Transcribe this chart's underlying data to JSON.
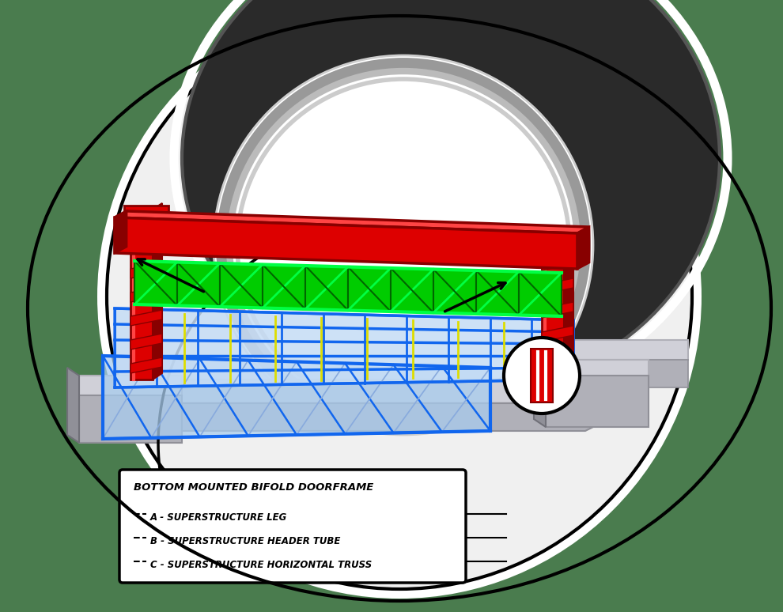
{
  "bg_color": "#4a7c4e",
  "legend_title": "BOTTOM MOUNTED BIFOLD DOORFRAME",
  "legend_items": [
    "A - SUPERSTRUCTURE LEG",
    "B - SUPERSTRUCTURE HEADER TUBE",
    "C - SUPERSTRUCTURE HORIZONTAL TRUSS"
  ],
  "red_color": "#dd0000",
  "red_light": "#ff4444",
  "red_dark": "#880000",
  "green_color": "#00dd00",
  "green_dark": "#006600",
  "blue_color": "#1166ee",
  "blue_light": "#aaccff",
  "yellow_color": "#dddd00",
  "white_color": "#ffffff",
  "dome_dark": "#1a1a1a",
  "dome_mid": "#3a3a3a",
  "dome_edge": "#888888",
  "dome_inner": "#e0e0e0",
  "arch_gray": "#aaaaaa",
  "concrete_light": "#d0d0d8",
  "concrete_mid": "#b0b0b8",
  "concrete_dark": "#909098",
  "black": "#000000"
}
